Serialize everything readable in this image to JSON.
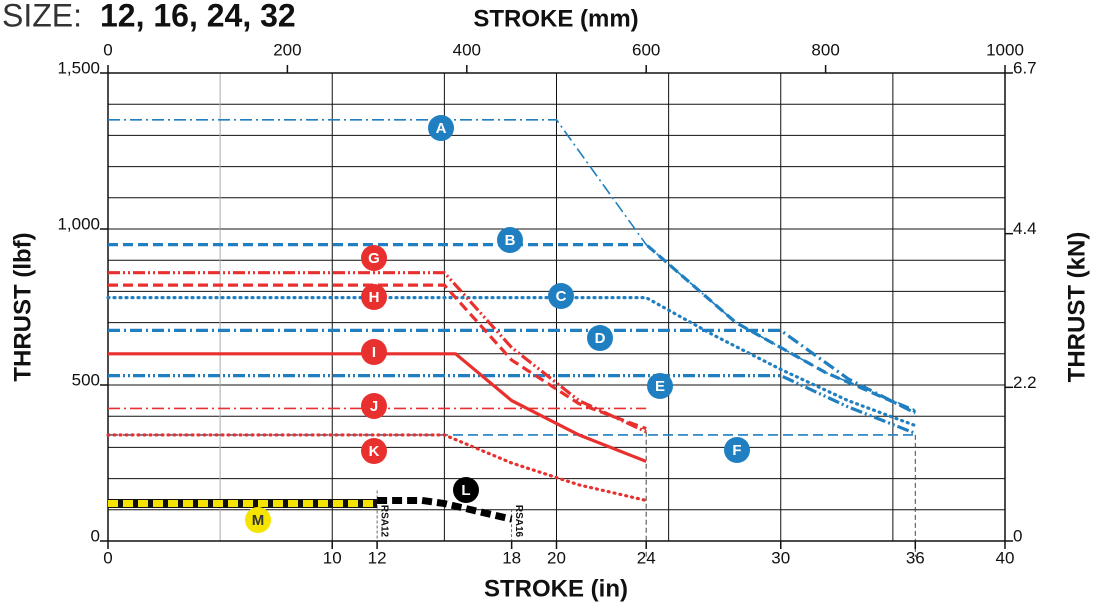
{
  "chart_data": {
    "type": "line",
    "title_prefix": "SIZE:",
    "title": "12, 16, 24, 32",
    "x_label": "STROKE (in)",
    "x2_label": "STROKE (mm)",
    "y_label": "THRUST (lbf)",
    "y2_label": "THRUST (kN)",
    "xlim": [
      0,
      40
    ],
    "xticks": [
      0,
      10,
      12,
      18,
      20,
      24,
      30,
      36,
      40
    ],
    "x_grid": [
      5,
      10,
      15,
      20,
      25,
      30,
      35
    ],
    "x2lim": [
      0,
      1000
    ],
    "x2ticks": [
      0,
      200,
      400,
      600,
      800,
      1000
    ],
    "ylim": [
      0,
      1500
    ],
    "yticks": [
      0,
      500,
      {
        "value": 1000,
        "label": "1,000"
      },
      {
        "value": 1500,
        "label": "1,500"
      }
    ],
    "y_grid": [
      100,
      200,
      300,
      400,
      500,
      600,
      700,
      800,
      900,
      1000,
      1100,
      1200,
      1300,
      1400
    ],
    "y2lim": [
      0,
      6.7
    ],
    "y2ticks": [
      0,
      2.2,
      4.4,
      6.7
    ],
    "grid": true,
    "annotations": [
      "RSA12",
      "RSA16"
    ],
    "series": [
      {
        "name": "A",
        "color": "#1f7fc0",
        "style": "dashdot",
        "weight": "thin",
        "x": [
          0,
          20,
          24,
          28,
          32,
          36
        ],
        "values": [
          1350,
          1350,
          950,
          700,
          540,
          420
        ]
      },
      {
        "name": "B",
        "color": "#1f7fc0",
        "style": "dashed",
        "weight": "thick",
        "x": [
          0,
          24,
          28,
          32,
          36
        ],
        "values": [
          950,
          950,
          700,
          540,
          415
        ]
      },
      {
        "name": "C",
        "color": "#1f7fc0",
        "style": "dotted",
        "weight": "thick",
        "x": [
          0,
          24,
          27,
          30,
          33,
          36
        ],
        "values": [
          780,
          780,
          660,
          550,
          450,
          370
        ]
      },
      {
        "name": "D",
        "color": "#1f7fc0",
        "style": "dashdot",
        "weight": "thick",
        "x": [
          0,
          30,
          33,
          36
        ],
        "values": [
          675,
          675,
          520,
          410
        ]
      },
      {
        "name": "E",
        "color": "#1f7fc0",
        "style": "dashdotdot",
        "weight": "thick",
        "x": [
          0,
          30,
          33,
          36
        ],
        "values": [
          530,
          530,
          430,
          345
        ]
      },
      {
        "name": "F",
        "color": "#1f7fc0",
        "style": "dashed",
        "weight": "thin",
        "x": [
          0,
          36
        ],
        "values": [
          340,
          340
        ]
      },
      {
        "name": "G",
        "color": "#e8312f",
        "style": "dashdotdot",
        "weight": "thick",
        "x": [
          0,
          15,
          18,
          21,
          24
        ],
        "values": [
          860,
          860,
          620,
          450,
          350
        ]
      },
      {
        "name": "H",
        "color": "#e8312f",
        "style": "dashed",
        "weight": "thick",
        "x": [
          0,
          15,
          18,
          21,
          24
        ],
        "values": [
          820,
          820,
          580,
          440,
          360
        ]
      },
      {
        "name": "I",
        "color": "#e8312f",
        "style": "solid",
        "weight": "thick",
        "x": [
          0,
          15.5,
          18,
          21,
          24
        ],
        "values": [
          600,
          600,
          450,
          340,
          255
        ]
      },
      {
        "name": "J",
        "color": "#e8312f",
        "style": "dashdot",
        "weight": "thin",
        "x": [
          0,
          24
        ],
        "values": [
          425,
          425
        ]
      },
      {
        "name": "K",
        "color": "#e8312f",
        "style": "dotted",
        "weight": "thick",
        "x": [
          0,
          15,
          18,
          21,
          24
        ],
        "values": [
          340,
          340,
          250,
          180,
          130
        ]
      },
      {
        "name": "L",
        "color": "#000000",
        "style": "dashed",
        "weight": "heavy",
        "x": [
          12,
          14,
          15,
          18
        ],
        "values": [
          130,
          130,
          120,
          70
        ]
      },
      {
        "name": "M",
        "color": "#f5e400",
        "style": "dashed",
        "weight": "heavy",
        "x": [
          0,
          12
        ],
        "values": [
          120,
          120
        ]
      }
    ]
  }
}
